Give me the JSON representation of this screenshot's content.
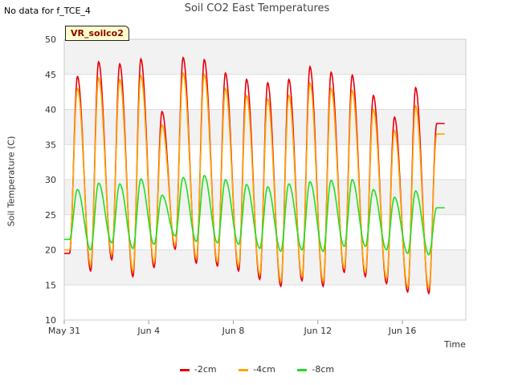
{
  "header": {
    "no_data_note": "No data for f_TCE_4",
    "site_label": "VR_soilco2"
  },
  "chart_data": {
    "type": "line",
    "title": "Soil CO2 East Temperatures",
    "xlabel": "Time",
    "ylabel": "Soil Temperature (C)",
    "xlim": [
      "2017-05-31",
      "2017-06-19"
    ],
    "ylim": [
      10,
      50
    ],
    "yticks": [
      10,
      15,
      20,
      25,
      30,
      35,
      40,
      45,
      50
    ],
    "xticks": [
      {
        "label": "May 31",
        "date": "2017-05-31"
      },
      {
        "label": "Jun 4",
        "date": "2017-06-04"
      },
      {
        "label": "Jun 8",
        "date": "2017-06-08"
      },
      {
        "label": "Jun 12",
        "date": "2017-06-12"
      },
      {
        "label": "Jun 16",
        "date": "2017-06-16"
      }
    ],
    "grid": true,
    "legend_position": "bottom",
    "days": [
      "2017-05-31",
      "2017-06-01",
      "2017-06-02",
      "2017-06-03",
      "2017-06-04",
      "2017-06-05",
      "2017-06-06",
      "2017-06-07",
      "2017-06-08",
      "2017-06-09",
      "2017-06-10",
      "2017-06-11",
      "2017-06-12",
      "2017-06-13",
      "2017-06-14",
      "2017-06-15",
      "2017-06-16",
      "2017-06-17"
    ],
    "series": [
      {
        "name": "-2cm",
        "color": "#e8000b",
        "daily_min": [
          19.5,
          17.0,
          18.6,
          16.2,
          17.5,
          20.1,
          18.1,
          17.7,
          17.0,
          15.8,
          14.8,
          15.6,
          14.8,
          16.8,
          16.2,
          15.2,
          14.0,
          13.8
        ],
        "daily_max": [
          44.7,
          46.8,
          46.5,
          47.2,
          39.7,
          47.4,
          47.1,
          45.2,
          44.3,
          43.8,
          44.3,
          46.1,
          45.3,
          44.9,
          42.0,
          38.9,
          43.1,
          38.0
        ]
      },
      {
        "name": "-4cm",
        "color": "#ffa500",
        "daily_min": [
          20.0,
          17.8,
          19.3,
          17.0,
          18.2,
          20.7,
          18.8,
          18.3,
          17.7,
          16.5,
          15.5,
          16.2,
          15.5,
          17.4,
          16.8,
          15.9,
          14.7,
          14.5
        ],
        "daily_max": [
          43.0,
          44.5,
          44.3,
          44.8,
          37.8,
          45.2,
          45.0,
          43.0,
          42.0,
          41.5,
          42.0,
          43.8,
          43.0,
          42.7,
          40.0,
          37.0,
          40.5,
          36.5
        ]
      },
      {
        "name": "-8cm",
        "color": "#22dd22",
        "daily_min": [
          21.5,
          20.0,
          21.0,
          20.2,
          20.8,
          22.0,
          21.2,
          21.0,
          20.8,
          20.2,
          19.8,
          20.0,
          19.8,
          20.5,
          20.5,
          20.0,
          19.5,
          19.3
        ],
        "daily_max": [
          28.6,
          29.5,
          29.4,
          30.1,
          27.8,
          30.3,
          30.6,
          30.0,
          29.3,
          29.0,
          29.4,
          29.7,
          29.9,
          30.0,
          28.6,
          27.5,
          28.4,
          26.0
        ]
      }
    ]
  }
}
